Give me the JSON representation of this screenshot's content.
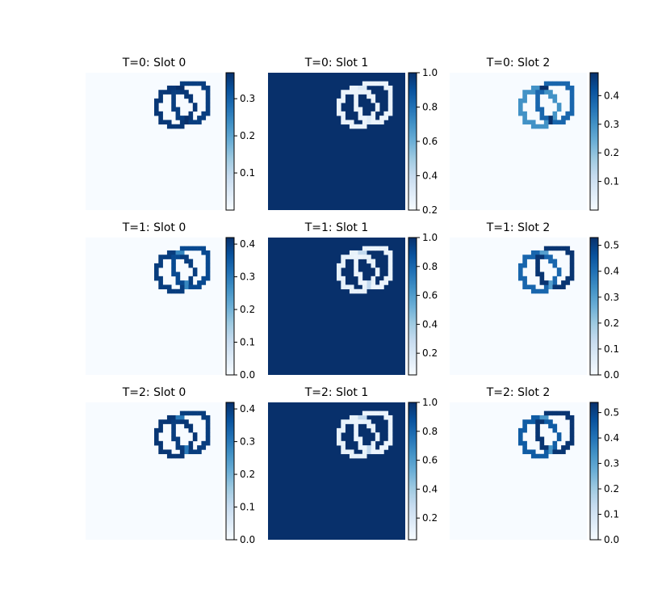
{
  "chart_data": {
    "type": "heatmap",
    "colormap": "Blues",
    "colors": {
      "background": "#ffffff",
      "cmap_low": "#f7fbff",
      "cmap_high": "#08306b"
    },
    "shape_description": "two overlapping ring outlines in upper-right of each panel",
    "panels": [
      {
        "title": "T=0: Slot 0",
        "vmin": 0.0,
        "vmax": 0.37,
        "ticks": [
          0.1,
          0.2,
          0.3
        ],
        "tick_labels": [
          "0.1",
          "0.2",
          "0.3"
        ],
        "background_value": 0.0,
        "ring_a_value": 0.36,
        "ring_b_value": 0.35,
        "overlap_value": 0.37
      },
      {
        "title": "T=0: Slot 1",
        "vmin": 0.2,
        "vmax": 1.0,
        "ticks": [
          0.2,
          0.4,
          0.6,
          0.8,
          1.0
        ],
        "tick_labels": [
          "0.2",
          "0.4",
          "0.6",
          "0.8",
          "1.0"
        ],
        "background_value": 1.0,
        "ring_a_value": 0.25,
        "ring_b_value": 0.25,
        "overlap_value": 0.3
      },
      {
        "title": "T=0: Slot 2",
        "vmin": 0.0,
        "vmax": 0.48,
        "ticks": [
          0.1,
          0.2,
          0.3,
          0.4
        ],
        "tick_labels": [
          "0.1",
          "0.2",
          "0.3",
          "0.4"
        ],
        "background_value": 0.0,
        "ring_a_value": 0.3,
        "ring_b_value": 0.38,
        "overlap_value": 0.48
      },
      {
        "title": "T=1: Slot 0",
        "vmin": 0.0,
        "vmax": 0.42,
        "ticks": [
          0.0,
          0.1,
          0.2,
          0.3,
          0.4
        ],
        "tick_labels": [
          "0.0",
          "0.1",
          "0.2",
          "0.3",
          "0.4"
        ],
        "background_value": 0.0,
        "ring_a_value": 0.4,
        "ring_b_value": 0.38,
        "overlap_value": 0.28
      },
      {
        "title": "T=1: Slot 1",
        "vmin": 0.05,
        "vmax": 1.0,
        "ticks": [
          0.2,
          0.4,
          0.6,
          0.8,
          1.0
        ],
        "tick_labels": [
          "0.2",
          "0.4",
          "0.6",
          "0.8",
          "1.0"
        ],
        "background_value": 1.0,
        "ring_a_value": 0.12,
        "ring_b_value": 0.1,
        "overlap_value": 0.3
      },
      {
        "title": "T=1: Slot 2",
        "vmin": 0.0,
        "vmax": 0.53,
        "ticks": [
          0.0,
          0.1,
          0.2,
          0.3,
          0.4,
          0.5
        ],
        "tick_labels": [
          "0.0",
          "0.1",
          "0.2",
          "0.3",
          "0.4",
          "0.5"
        ],
        "background_value": 0.0,
        "ring_a_value": 0.42,
        "ring_b_value": 0.52,
        "overlap_value": 0.3
      },
      {
        "title": "T=2: Slot 0",
        "vmin": 0.0,
        "vmax": 0.42,
        "ticks": [
          0.0,
          0.1,
          0.2,
          0.3,
          0.4
        ],
        "tick_labels": [
          "0.0",
          "0.1",
          "0.2",
          "0.3",
          "0.4"
        ],
        "background_value": 0.0,
        "ring_a_value": 0.41,
        "ring_b_value": 0.4,
        "overlap_value": 0.3
      },
      {
        "title": "T=2: Slot 1",
        "vmin": 0.05,
        "vmax": 1.0,
        "ticks": [
          0.2,
          0.4,
          0.6,
          0.8,
          1.0
        ],
        "tick_labels": [
          "0.2",
          "0.4",
          "0.6",
          "0.8",
          "1.0"
        ],
        "background_value": 1.0,
        "ring_a_value": 0.12,
        "ring_b_value": 0.1,
        "overlap_value": 0.3
      },
      {
        "title": "T=2: Slot 2",
        "vmin": 0.0,
        "vmax": 0.54,
        "ticks": [
          0.0,
          0.1,
          0.2,
          0.3,
          0.4,
          0.5
        ],
        "tick_labels": [
          "0.0",
          "0.1",
          "0.2",
          "0.3",
          "0.4",
          "0.5"
        ],
        "background_value": 0.0,
        "ring_a_value": 0.45,
        "ring_b_value": 0.53,
        "overlap_value": 0.33
      }
    ]
  }
}
